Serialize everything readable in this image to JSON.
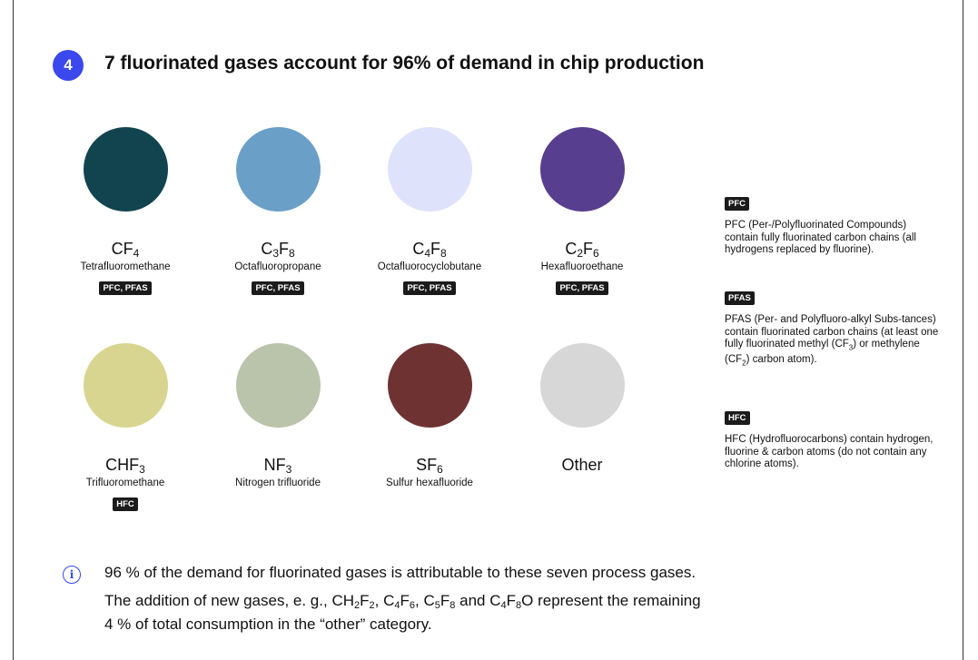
{
  "header": {
    "step_number": "4",
    "title": "7 fluorinated gases account for 96% of demand in chip production"
  },
  "gases": [
    {
      "formula_main": "CF",
      "formula_sub": "4",
      "name": "Tetrafluoromethane",
      "tag": "PFC, PFAS",
      "color": "#124450"
    },
    {
      "formula_main": "C",
      "formula_sub": "3",
      "formula_main2": "F",
      "formula_sub2": "8",
      "name": "Octafluoropropane",
      "tag": "PFC, PFAS",
      "color": "#6a9fc7"
    },
    {
      "formula_main": "C",
      "formula_sub": "4",
      "formula_main2": "F",
      "formula_sub2": "8",
      "name": "Octafluorocyclobutane",
      "tag": "PFC, PFAS",
      "color": "#dfe2fb"
    },
    {
      "formula_main": "C",
      "formula_sub": "2",
      "formula_main2": "F",
      "formula_sub2": "6",
      "name": "Hexafluoroethane",
      "tag": "PFC, PFAS",
      "color": "#583e8f"
    },
    {
      "formula_main": "CHF",
      "formula_sub": "3",
      "name": "Trifluoromethane",
      "tag": "HFC",
      "color": "#d7d58f"
    },
    {
      "formula_main": "NF",
      "formula_sub": "3",
      "name": "Nitrogen trifluoride",
      "color": "#b9c4aa"
    },
    {
      "formula_main": "SF",
      "formula_sub": "6",
      "name": "Sulfur hexafluoride",
      "color": "#6f3232"
    },
    {
      "formula_main": "Other",
      "color": "#d7d7d7"
    }
  ],
  "legend": [
    {
      "tag": "PFC",
      "text": "PFC (Per-/Polyfluorinated Compounds) contain fully fluorinated carbon chains (all hydrogens replaced by fluorine)."
    },
    {
      "tag": "PFAS",
      "text_part1": "PFAS (Per- and Polyfluoro-alkyl Subs-tances) contain fluorinated carbon chains (at least one fully fluorinated methyl (CF",
      "sub1": "3",
      "text_part2": ") or methylene (CF",
      "sub2": "2",
      "text_part3": ") carbon atom)."
    },
    {
      "tag": "HFC",
      "text": "HFC (Hydrofluorocarbons) contain hydrogen, fluorine & carbon atoms (do not contain any chlorine atoms)."
    }
  ],
  "note": {
    "line1": "96 % of the demand for fluorinated gases is attributable to these seven process gases.",
    "line2_prefix": "The addition of new gases, e. g., ",
    "g1a": "CH",
    "g1b": "2",
    "g1c": "F",
    "g1d": "2",
    "sep1": ", ",
    "g2a": "C",
    "g2b": "4",
    "g2c": "F",
    "g2d": "6",
    "sep2": ", ",
    "g3a": "C",
    "g3b": "5",
    "g3c": "F",
    "g3d": "8",
    "sep3": " and ",
    "g4a": "C",
    "g4b": "4",
    "g4c": "F",
    "g4d": "8",
    "g4e": "O",
    "line2_suffix": " represent the remaining",
    "line3": "4 % of total consumption in the “other” category."
  },
  "icons": {
    "info": "i"
  }
}
